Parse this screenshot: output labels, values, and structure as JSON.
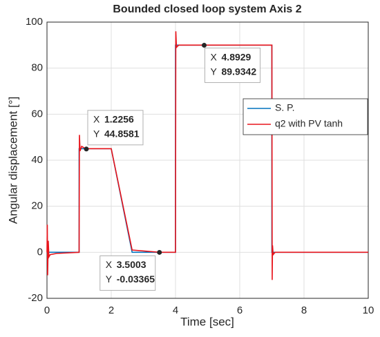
{
  "chart_data": {
    "type": "line",
    "title": "Bounded closed loop system Axis 2",
    "x_label": "Time [sec]",
    "y_label": "Angular displacement [°]",
    "xlim": [
      0,
      10
    ],
    "xticks": [
      0,
      2,
      4,
      6,
      8,
      10
    ],
    "ylim": [
      -20,
      100
    ],
    "yticks": [
      -20,
      0,
      20,
      40,
      60,
      80,
      100
    ],
    "grid": true,
    "legend_position": "east",
    "series": [
      {
        "name": "S. P.",
        "color": "#0072bd",
        "x": [
          0,
          1,
          1,
          2,
          2.65,
          4,
          4,
          7,
          7,
          10
        ],
        "values": [
          0,
          0,
          45,
          45,
          0,
          0,
          90,
          90,
          0,
          0
        ]
      },
      {
        "name": "q2 with PV tanh",
        "color": "#e8141b",
        "x": [
          0,
          0.01,
          0.02,
          0.04,
          0.06,
          0.1,
          0.3,
          1,
          1.01,
          1.03,
          1.08,
          1.2,
          2,
          2.65,
          3.5,
          4,
          4.01,
          4.03,
          4.1,
          4.9,
          7,
          7.01,
          7.02,
          7.04,
          7.1,
          7.3,
          10
        ],
        "values": [
          0,
          12,
          -10,
          5,
          -2,
          -1,
          -0.5,
          0,
          51,
          44,
          46,
          45,
          45,
          1,
          0,
          0,
          96,
          89,
          90,
          90,
          90,
          -12,
          3,
          -1,
          0,
          0,
          0
        ]
      }
    ],
    "datatip_labels": [
      "X",
      "Y"
    ],
    "datatips": [
      {
        "x": 1.2256,
        "y": 44.8581
      },
      {
        "x": 3.5003,
        "y": -0.03365
      },
      {
        "x": 4.8929,
        "y": 89.9342
      }
    ]
  }
}
